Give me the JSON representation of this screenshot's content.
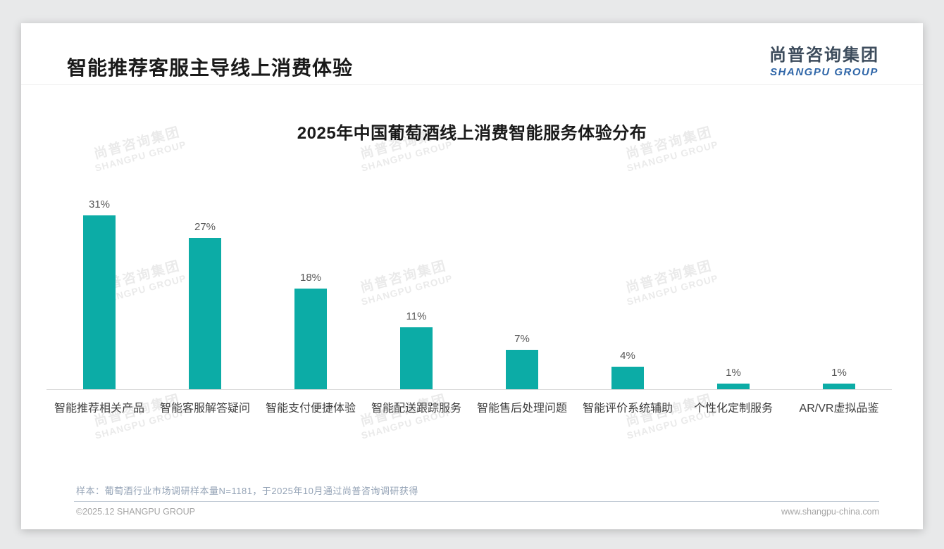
{
  "page": {
    "header": {
      "title": "智能推荐客服主导线上消费体验"
    },
    "logo": {
      "cn": "尚普咨询集团",
      "en": "SHANGPU GROUP"
    },
    "watermark": {
      "cn": "尚普咨询集团",
      "en": "SHANGPU GROUP"
    },
    "footnote": "样本：葡萄酒行业市场调研样本量N=1181，于2025年10月通过尚普咨询调研获得",
    "footer": {
      "left": "©2025.12 SHANGPU GROUP",
      "right": "www.shangpu-china.com"
    }
  },
  "chart_data": {
    "type": "bar",
    "title": "2025年中国葡萄酒线上消费智能服务体验分布",
    "categories": [
      "智能推荐相关产品",
      "智能客服解答疑问",
      "智能支付便捷体验",
      "智能配送跟踪服务",
      "智能售后处理问题",
      "智能评价系统辅助",
      "个性化定制服务",
      "AR/VR虚拟品鉴"
    ],
    "values": [
      31,
      27,
      18,
      11,
      7,
      4,
      1,
      1
    ],
    "unit": "%",
    "value_labels": true,
    "xlabel": "",
    "ylabel": "",
    "ylim": [
      0,
      35
    ],
    "grid": false,
    "legend": false,
    "y_axis_visible": false,
    "bar_color": "#0caca6"
  }
}
